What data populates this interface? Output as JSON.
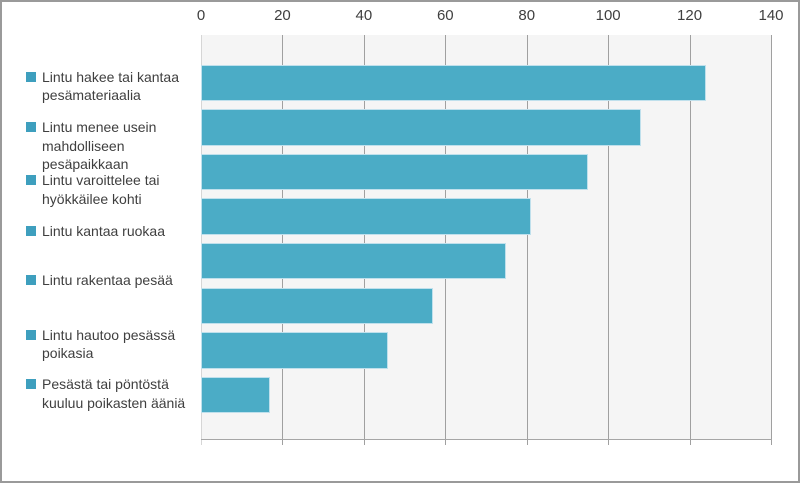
{
  "chart_data": {
    "type": "bar",
    "orientation": "horizontal",
    "title": "",
    "xlabel": "",
    "ylabel": "",
    "xlim": [
      0,
      140
    ],
    "xticks": [
      0,
      20,
      40,
      60,
      80,
      100,
      120,
      140
    ],
    "value_axis_position": "top",
    "grid": "vertical",
    "legend": "none",
    "categories": [
      "Lintu hakee tai kantaa pesämateriaalia",
      "Lintu menee usein mahdolliseen pesäpaikkaan",
      "Lintu varoittelee tai hyökkäilee kohti",
      "Lintu kantaa ruokaa",
      "Lintu rakentaa pesää",
      "",
      "Lintu hautoo pesässä poikasia",
      "Pesästä tai pöntöstä kuuluu poikasten ääniä"
    ],
    "category_label_lines": [
      [
        "Lintu hakee tai kantaa",
        "pesämateriaalia"
      ],
      [
        "Lintu menee usein",
        "mahdolliseen",
        "pesäpaikkaan"
      ],
      [
        "Lintu varoittelee tai",
        "hyökkäilee kohti"
      ],
      [
        "Lintu kantaa ruokaa"
      ],
      [
        "Lintu rakentaa pesää"
      ],
      [],
      [
        "Lintu hautoo pesässä",
        "poikasia"
      ],
      [
        "Pesästä tai pöntöstä",
        "kuuluu poikasten ääniä"
      ]
    ],
    "values": [
      124,
      108,
      95,
      81,
      75,
      57,
      46,
      17
    ],
    "colors": {
      "bar": "#4bacc6",
      "bar_edge": "#bfe0ec",
      "bullet": "#3e9fbe",
      "plot_bg": "#f5f5f5",
      "gridline": "#a0a0a0",
      "zero_gridline": "#d6d6d6",
      "axis_line": "#a6a6a6",
      "text": "#3f3f3f",
      "frame_border": "#9a9a9a"
    }
  }
}
